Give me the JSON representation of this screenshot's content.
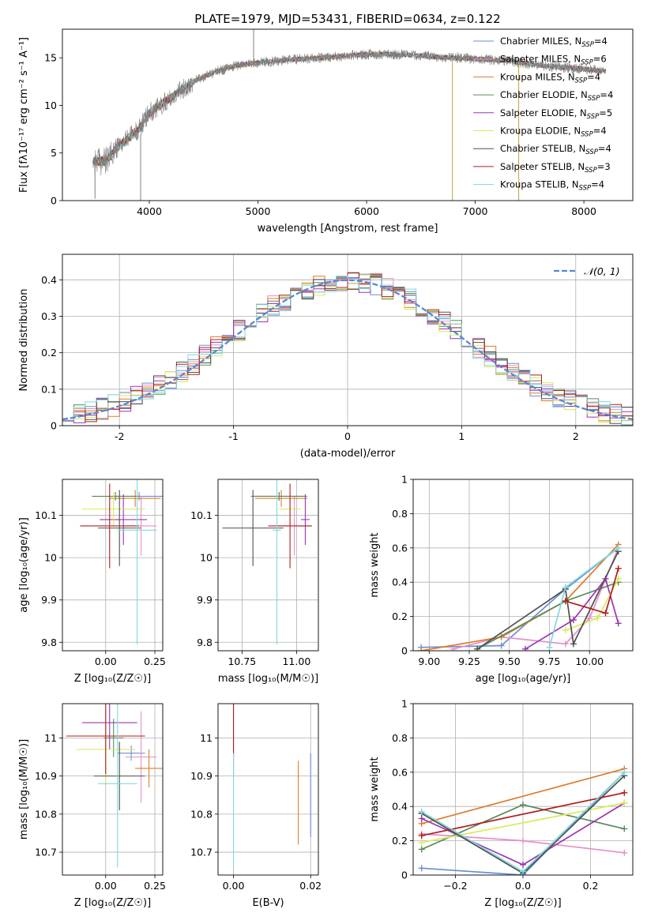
{
  "figure": {
    "title": "PLATE=1979, MJD=53431, FIBERID=0634, z=0.122"
  },
  "colors": {
    "Chabrier MILES": "#6a8fd6",
    "Salpeter MILES": "#e68fc8",
    "Kroupa MILES": "#e07b2a",
    "Chabrier ELODIE": "#5a8a5a",
    "Salpeter ELODIE": "#9b35b5",
    "Kroupa ELODIE": "#d8ea5a",
    "Chabrier STELIB": "#505050",
    "Salpeter STELIB": "#b01c1c",
    "Kroupa STELIB": "#7fd9e0",
    "normal": "#5a86d6"
  },
  "chart_data": [
    {
      "id": "spectrum",
      "type": "line",
      "xlabel": "wavelength [Angstrom, rest frame]",
      "ylabel": "Flux [fλ10⁻¹⁷ erg cm⁻² s⁻¹ A⁻¹]",
      "xlim": [
        3200,
        8450
      ],
      "ylim": [
        0,
        18
      ],
      "xticks": [
        4000,
        5000,
        6000,
        7000,
        8000
      ],
      "yticks": [
        0,
        5,
        10,
        15
      ],
      "grid": false,
      "legend_position": "top-right",
      "legend": [
        {
          "label": "Chabrier MILES, N",
          "sub": "SSP",
          "tail": "=4",
          "color": "Chabrier MILES"
        },
        {
          "label": "Salpeter MILES, N",
          "sub": "SSP",
          "tail": "=6",
          "color": "Salpeter MILES"
        },
        {
          "label": "Kroupa MILES, N",
          "sub": "SSP",
          "tail": "=4",
          "color": "Kroupa MILES"
        },
        {
          "label": "Chabrier ELODIE, N",
          "sub": "SSP",
          "tail": "=4",
          "color": "Chabrier ELODIE"
        },
        {
          "label": "Salpeter ELODIE, N",
          "sub": "SSP",
          "tail": "=5",
          "color": "Salpeter ELODIE"
        },
        {
          "label": "Kroupa ELODIE, N",
          "sub": "SSP",
          "tail": "=4",
          "color": "Kroupa ELODIE"
        },
        {
          "label": "Chabrier STELIB, N",
          "sub": "SSP",
          "tail": "=4",
          "color": "Chabrier STELIB"
        },
        {
          "label": "Salpeter STELIB, N",
          "sub": "SSP",
          "tail": "=3",
          "color": "Salpeter STELIB"
        },
        {
          "label": "Kroupa STELIB, N",
          "sub": "SSP",
          "tail": "=4",
          "color": "Kroupa STELIB"
        }
      ],
      "continuum": [
        [
          3480,
          4.2
        ],
        [
          3600,
          4.1
        ],
        [
          3700,
          5.5
        ],
        [
          3800,
          6.5
        ],
        [
          3900,
          7.5
        ],
        [
          4000,
          9.2
        ],
        [
          4200,
          10.8
        ],
        [
          4400,
          12.5
        ],
        [
          4600,
          13.5
        ],
        [
          4800,
          14.2
        ],
        [
          5000,
          14.5
        ],
        [
          5300,
          14.8
        ],
        [
          5600,
          15.0
        ],
        [
          5900,
          15.3
        ],
        [
          6200,
          15.4
        ],
        [
          6500,
          15.2
        ],
        [
          6800,
          15.0
        ],
        [
          7000,
          14.9
        ],
        [
          7300,
          14.7
        ],
        [
          7400,
          14.5
        ],
        [
          7600,
          14.2
        ],
        [
          7800,
          14.0
        ],
        [
          8000,
          13.8
        ],
        [
          8200,
          13.6
        ]
      ],
      "spikes": [
        {
          "x": 3500,
          "y0": 4,
          "y1": 0.2
        },
        {
          "x": 3920,
          "y0": 7,
          "y1": 0
        },
        {
          "x": 4960,
          "y0": 14,
          "y1": 18
        },
        {
          "x": 6790,
          "y0": 15,
          "y1": 0
        },
        {
          "x": 7400,
          "y0": 14.5,
          "y1": 0
        }
      ]
    },
    {
      "id": "residual-histogram",
      "type": "bar",
      "xlabel": "(data-model)/error",
      "ylabel": "Normed distribution",
      "xlim": [
        -2.5,
        2.5
      ],
      "ylim": [
        0,
        0.47
      ],
      "xticks": [
        -2,
        -1,
        0,
        1,
        2
      ],
      "yticks": [
        0.0,
        0.1,
        0.2,
        0.3,
        0.4
      ],
      "grid": true,
      "bin_edges": [
        -2.5,
        2.5
      ],
      "bin_count": 50,
      "normal_legend": "𝒩(0, 1)",
      "legend_position": "top-right"
    },
    {
      "id": "age-vs-Z",
      "type": "scatter",
      "xlabel": "Z [log₁₀(Z/Z☉)]",
      "ylabel": "age  [log₁₀(age/yr)]",
      "xlim": [
        -0.22,
        0.29
      ],
      "ylim": [
        9.78,
        10.185
      ],
      "xticks": [
        0.0,
        0.25
      ],
      "xticklabels": [
        "0.00",
        "0.25"
      ],
      "yticks": [
        9.8,
        9.9,
        10.0,
        10.1
      ],
      "grid": true,
      "points": [
        {
          "model": "Chabrier MILES",
          "x": 0.17,
          "xerr": 0.12,
          "y": 10.145,
          "yerr": 0.01
        },
        {
          "model": "Salpeter MILES",
          "x": 0.18,
          "xerr": 0.08,
          "y": 10.075,
          "yerr": 0.07
        },
        {
          "model": "Kroupa MILES",
          "x": 0.15,
          "xerr": 0.13,
          "y": 10.14,
          "yerr": 0.02
        },
        {
          "model": "Chabrier ELODIE",
          "x": 0.05,
          "xerr": 0.12,
          "y": 10.145,
          "yerr": 0.01
        },
        {
          "model": "Salpeter ELODIE",
          "x": 0.09,
          "xerr": 0.12,
          "y": 10.09,
          "yerr": 0.06
        },
        {
          "model": "Kroupa ELODIE",
          "x": 0.04,
          "xerr": 0.16,
          "y": 10.115,
          "yerr": 0.04
        },
        {
          "model": "Chabrier STELIB",
          "x": 0.07,
          "xerr": 0.11,
          "y": 10.07,
          "yerr": 0.09
        },
        {
          "model": "Salpeter STELIB",
          "x": 0.02,
          "xerr": 0.15,
          "y": 10.075,
          "yerr": 0.1
        },
        {
          "model": "Kroupa STELIB",
          "x": 0.16,
          "xerr": 0.1,
          "y": 10.065,
          "yerr": 0.27
        }
      ]
    },
    {
      "id": "age-vs-mass",
      "type": "scatter",
      "xlabel": "mass [log₁₀(M/M☉)]",
      "ylabel": "",
      "xlim": [
        10.64,
        11.1
      ],
      "ylim": [
        9.78,
        10.185
      ],
      "xticks": [
        10.75,
        11.0
      ],
      "xticklabels": [
        "10.75",
        "11.00"
      ],
      "yticks": [
        9.8,
        9.9,
        10.0,
        10.1
      ],
      "grid": true,
      "points": [
        {
          "model": "Chabrier MILES",
          "x": 10.92,
          "xerr": 0.13,
          "y": 10.145,
          "yerr": 0.01
        },
        {
          "model": "Salpeter MILES",
          "x": 10.99,
          "xerr": 0.08,
          "y": 10.075,
          "yerr": 0.07
        },
        {
          "model": "Kroupa MILES",
          "x": 10.93,
          "xerr": 0.12,
          "y": 10.14,
          "yerr": 0.02
        },
        {
          "model": "Chabrier ELODIE",
          "x": 10.92,
          "xerr": 0.12,
          "y": 10.145,
          "yerr": 0.01
        },
        {
          "model": "Salpeter ELODIE",
          "x": 11.04,
          "xerr": 0.02,
          "y": 10.09,
          "yerr": 0.06
        },
        {
          "model": "Kroupa ELODIE",
          "x": 10.97,
          "xerr": 0.05,
          "y": 10.115,
          "yerr": 0.04
        },
        {
          "model": "Chabrier STELIB",
          "x": 10.8,
          "xerr": 0.14,
          "y": 10.07,
          "yerr": 0.09
        },
        {
          "model": "Salpeter STELIB",
          "x": 10.97,
          "xerr": 0.1,
          "y": 10.075,
          "yerr": 0.1
        },
        {
          "model": "Kroupa STELIB",
          "x": 10.91,
          "xerr": 0.02,
          "y": 10.065,
          "yerr": 0.27
        }
      ]
    },
    {
      "id": "weight-vs-age",
      "type": "line",
      "xlabel": "age  [log₁₀(age/yr)]",
      "ylabel": "mass weight",
      "xlim": [
        8.9,
        10.27
      ],
      "ylim": [
        0,
        1.0
      ],
      "xticks": [
        9.0,
        9.25,
        9.5,
        9.75,
        10.0
      ],
      "xticklabels": [
        "9.00",
        "9.25",
        "9.50",
        "9.75",
        "10.00"
      ],
      "yticks": [
        0.0,
        0.2,
        0.4,
        0.6,
        0.8,
        1.0
      ],
      "grid": true,
      "series": [
        {
          "model": "Chabrier MILES",
          "points": [
            [
              8.95,
              0.02
            ],
            [
              9.45,
              0.03
            ],
            [
              9.85,
              0.36
            ],
            [
              10.18,
              0.6
            ]
          ]
        },
        {
          "model": "Salpeter MILES",
          "points": [
            [
              9.15,
              0.01
            ],
            [
              9.45,
              0.08
            ],
            [
              9.85,
              0.04
            ],
            [
              10.0,
              0.19
            ],
            [
              10.18,
              0.6
            ]
          ]
        },
        {
          "model": "Kroupa MILES",
          "points": [
            [
              8.95,
              0.0
            ],
            [
              9.45,
              0.08
            ],
            [
              9.85,
              0.29
            ],
            [
              10.18,
              0.62
            ]
          ]
        },
        {
          "model": "Chabrier ELODIE",
          "points": [
            [
              9.3,
              0.01
            ],
            [
              9.85,
              0.29
            ],
            [
              10.18,
              0.4
            ]
          ]
        },
        {
          "model": "Salpeter ELODIE",
          "points": [
            [
              9.6,
              0.01
            ],
            [
              9.9,
              0.18
            ],
            [
              10.1,
              0.42
            ],
            [
              10.18,
              0.16
            ]
          ]
        },
        {
          "model": "Kroupa ELODIE",
          "points": [
            [
              9.85,
              0.12
            ],
            [
              10.05,
              0.19
            ],
            [
              10.18,
              0.42
            ]
          ]
        },
        {
          "model": "Chabrier STELIB",
          "points": [
            [
              9.3,
              0.01
            ],
            [
              9.85,
              0.36
            ],
            [
              9.9,
              0.04
            ],
            [
              10.18,
              0.58
            ]
          ]
        },
        {
          "model": "Salpeter STELIB",
          "points": [
            [
              9.85,
              0.29
            ],
            [
              10.1,
              0.22
            ],
            [
              10.18,
              0.48
            ]
          ]
        },
        {
          "model": "Kroupa STELIB",
          "points": [
            [
              9.75,
              0.02
            ],
            [
              9.85,
              0.37
            ],
            [
              10.18,
              0.6
            ]
          ]
        }
      ]
    },
    {
      "id": "mass-vs-Z",
      "type": "scatter",
      "xlabel": "Z [log₁₀(Z/Z☉)]",
      "ylabel": "mass [log₁₀(M/M☉)]",
      "xlim": [
        -0.22,
        0.29
      ],
      "ylim": [
        10.64,
        11.09
      ],
      "xticks": [
        0.0,
        0.25
      ],
      "xticklabels": [
        "0.00",
        "0.25"
      ],
      "yticks": [
        10.7,
        10.8,
        10.9,
        11.0
      ],
      "grid": true,
      "points": [
        {
          "model": "Chabrier MILES",
          "x": 0.13,
          "xerr": 0.07,
          "y": 10.96,
          "yerr": 0.02
        },
        {
          "model": "Salpeter MILES",
          "x": 0.18,
          "xerr": 0.08,
          "y": 10.95,
          "yerr": 0.12
        },
        {
          "model": "Kroupa MILES",
          "x": 0.22,
          "xerr": 0.07,
          "y": 10.92,
          "yerr": 0.05
        },
        {
          "model": "Chabrier ELODIE",
          "x": 0.04,
          "xerr": 0.05,
          "y": 11.0,
          "yerr": 0.05
        },
        {
          "model": "Salpeter ELODIE",
          "x": 0.02,
          "xerr": 0.14,
          "y": 11.04,
          "yerr": 0.07
        },
        {
          "model": "Kroupa ELODIE",
          "x": 0.0,
          "xerr": 0.15,
          "y": 10.97,
          "yerr": 0.09
        },
        {
          "model": "Chabrier STELIB",
          "x": 0.07,
          "xerr": 0.13,
          "y": 10.9,
          "yerr": 0.09
        },
        {
          "model": "Salpeter STELIB",
          "x": 0.0,
          "xerr": 0.2,
          "y": 11.005,
          "yerr": 0.1
        },
        {
          "model": "Kroupa STELIB",
          "x": 0.06,
          "xerr": 0.1,
          "y": 10.88,
          "yerr": 0.22
        }
      ]
    },
    {
      "id": "mass-vs-ebv",
      "type": "scatter",
      "xlabel": "E(B-V)",
      "ylabel": "",
      "xlim": [
        -0.004,
        0.022
      ],
      "ylim": [
        10.64,
        11.09
      ],
      "xticks": [
        0.0,
        0.02
      ],
      "xticklabels": [
        "0.00",
        "0.02"
      ],
      "yticks": [
        10.7,
        10.8,
        10.9,
        11.0
      ],
      "grid": true,
      "points": [
        {
          "model": "Chabrier MILES",
          "x": 0.02,
          "xerr": 0,
          "y": 10.85,
          "yerr": 0.11
        },
        {
          "model": "Kroupa MILES",
          "x": 0.0168,
          "xerr": 0,
          "y": 10.83,
          "yerr": 0.11
        },
        {
          "model": "Salpeter ELODIE",
          "x": 0.0,
          "xerr": 0,
          "y": 11.02,
          "yerr": 0.07
        },
        {
          "model": "Salpeter STELIB",
          "x": 0.0,
          "xerr": 0,
          "y": 11.0,
          "yerr": 0.1
        },
        {
          "model": "Kroupa STELIB",
          "x": 0.0,
          "xerr": 0,
          "y": 10.81,
          "yerr": 0.15
        }
      ]
    },
    {
      "id": "weight-vs-Z",
      "type": "line",
      "xlabel": "Z [log₁₀(Z/Z☉)]",
      "ylabel": "mass weight",
      "xlim": [
        -0.325,
        0.325
      ],
      "ylim": [
        0,
        1.0
      ],
      "xticks": [
        -0.2,
        0.0,
        0.2
      ],
      "xticklabels": [
        "−0.2",
        "0.0",
        "0.2"
      ],
      "yticks": [
        0.0,
        0.2,
        0.4,
        0.6,
        0.8,
        1.0
      ],
      "grid": true,
      "series": [
        {
          "model": "Chabrier MILES",
          "points": [
            [
              -0.3,
              0.04
            ],
            [
              0.0,
              0.0
            ],
            [
              0.3,
              0.6
            ]
          ]
        },
        {
          "model": "Salpeter MILES",
          "points": [
            [
              -0.3,
              0.24
            ],
            [
              0.0,
              0.2
            ],
            [
              0.3,
              0.13
            ]
          ]
        },
        {
          "model": "Kroupa MILES",
          "points": [
            [
              -0.3,
              0.3
            ],
            [
              0.3,
              0.62
            ]
          ]
        },
        {
          "model": "Chabrier ELODIE",
          "points": [
            [
              -0.3,
              0.15
            ],
            [
              0.0,
              0.41
            ],
            [
              0.3,
              0.27
            ]
          ]
        },
        {
          "model": "Salpeter ELODIE",
          "points": [
            [
              -0.3,
              0.33
            ],
            [
              0.0,
              0.06
            ],
            [
              0.3,
              0.42
            ]
          ]
        },
        {
          "model": "Kroupa ELODIE",
          "points": [
            [
              -0.3,
              0.19
            ],
            [
              0.3,
              0.42
            ]
          ]
        },
        {
          "model": "Chabrier STELIB",
          "points": [
            [
              -0.3,
              0.36
            ],
            [
              0.0,
              0.01
            ],
            [
              0.3,
              0.58
            ]
          ]
        },
        {
          "model": "Salpeter STELIB",
          "points": [
            [
              -0.3,
              0.23
            ],
            [
              0.3,
              0.48
            ]
          ]
        },
        {
          "model": "Kroupa STELIB",
          "points": [
            [
              -0.3,
              0.37
            ],
            [
              0.0,
              0.02
            ],
            [
              0.3,
              0.6
            ]
          ]
        }
      ]
    }
  ]
}
